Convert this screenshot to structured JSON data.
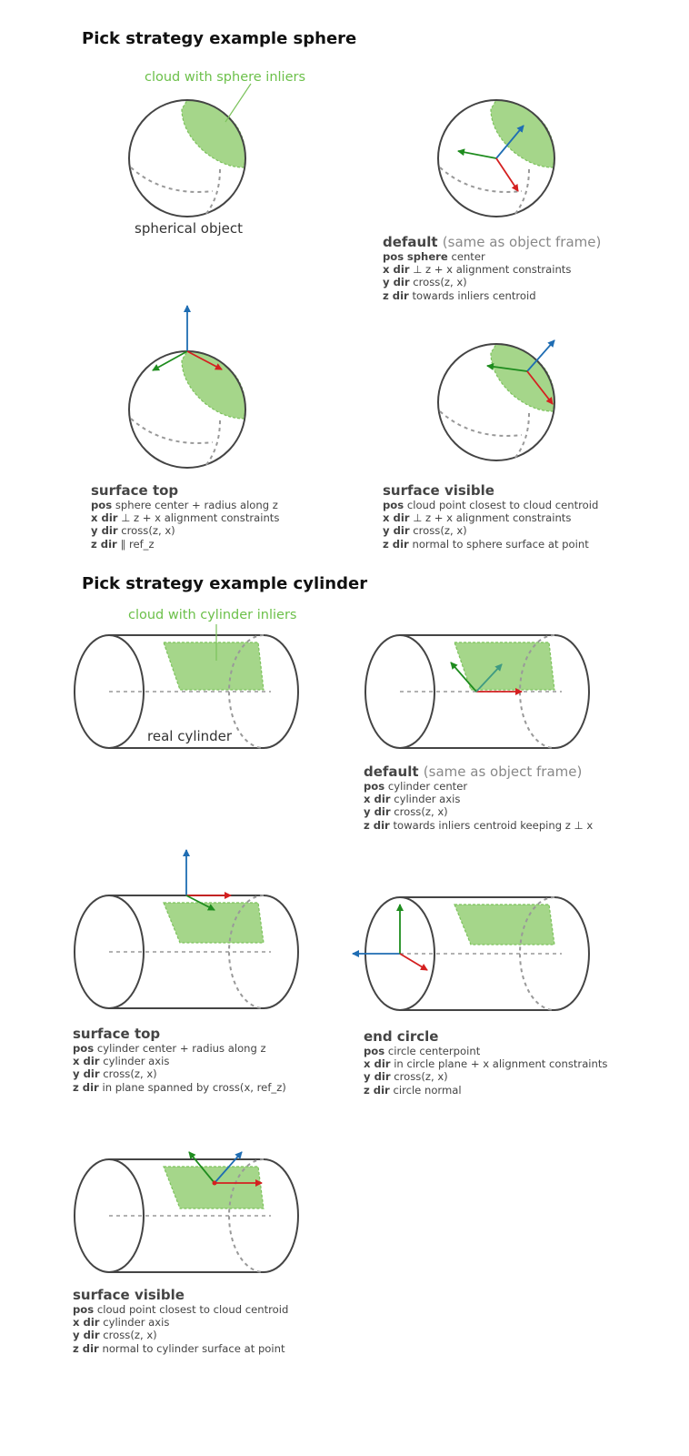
{
  "sections": {
    "sphere_title": "Pick strategy example sphere",
    "cylinder_title": "Pick strategy example cylinder"
  },
  "labels": {
    "sphere_callout": "cloud with sphere inliers",
    "sphere_object": "spherical object",
    "cylinder_callout": "cloud with cylinder inliers",
    "cylinder_object": "real cylinder"
  },
  "sphere": {
    "default": {
      "title": "default",
      "subtitle": "(same as object frame)",
      "rows": [
        {
          "key": "pos",
          "pre": "sphere",
          "text": " center"
        },
        {
          "key": "x dir",
          "text": "⊥ z + x alignment constraints"
        },
        {
          "key": "y dir",
          "text": "cross(z, x)"
        },
        {
          "key": "z dir",
          "text": "towards inliers centroid"
        }
      ]
    },
    "surface_top": {
      "title": "surface top",
      "rows": [
        {
          "key": "pos",
          "text": "sphere center + radius along z"
        },
        {
          "key": "x dir",
          "text": "⊥ z + x alignment constraints"
        },
        {
          "key": "y dir",
          "text": "cross(z, x)"
        },
        {
          "key": "z dir",
          "text": "∥ ref_z"
        }
      ]
    },
    "surface_visible": {
      "title": "surface visible",
      "rows": [
        {
          "key": "pos",
          "text": "cloud point closest to cloud centroid"
        },
        {
          "key": "x dir",
          "text": "⊥ z + x alignment constraints"
        },
        {
          "key": "y dir",
          "text": "cross(z, x)"
        },
        {
          "key": "z dir",
          "text": "normal to sphere surface at point"
        }
      ]
    }
  },
  "cylinder": {
    "default": {
      "title": "default",
      "subtitle": "(same as object frame)",
      "rows": [
        {
          "key": "pos",
          "text": "cylinder center"
        },
        {
          "key": "x dir",
          "text": "cylinder axis"
        },
        {
          "key": "y dir",
          "text": "cross(z, x)"
        },
        {
          "key": "z dir",
          "text": "towards inliers centroid keeping z ⊥ x"
        }
      ]
    },
    "surface_top": {
      "title": "surface top",
      "rows": [
        {
          "key": "pos",
          "text": "cylinder center + radius along z"
        },
        {
          "key": "x dir",
          "text": "cylinder axis"
        },
        {
          "key": "y dir",
          "text": "cross(z, x)"
        },
        {
          "key": "z dir",
          "text": "in plane spanned by cross(x, ref_z)"
        }
      ]
    },
    "end_circle": {
      "title": "end circle",
      "rows": [
        {
          "key": "pos",
          "text": "circle centerpoint"
        },
        {
          "key": "x dir",
          "text": "in circle plane + x alignment constraints"
        },
        {
          "key": "y dir",
          "text": "cross(z, x)"
        },
        {
          "key": "z dir",
          "text": "circle normal"
        }
      ]
    },
    "surface_visible": {
      "title": "surface visible",
      "rows": [
        {
          "key": "pos",
          "text": "cloud point closest to cloud centroid"
        },
        {
          "key": "x dir",
          "text": "cylinder axis"
        },
        {
          "key": "y dir",
          "text": "cross(z, x)"
        },
        {
          "key": "z dir",
          "text": "normal to cylinder surface at point"
        }
      ]
    }
  },
  "colors": {
    "x_axis": "#d42020",
    "y_axis": "#1e8c1e",
    "z_axis": "#1f6db3",
    "inliers_fill": "#a5d68a",
    "inliers_stroke": "#7cc25c",
    "outline": "#444444"
  }
}
